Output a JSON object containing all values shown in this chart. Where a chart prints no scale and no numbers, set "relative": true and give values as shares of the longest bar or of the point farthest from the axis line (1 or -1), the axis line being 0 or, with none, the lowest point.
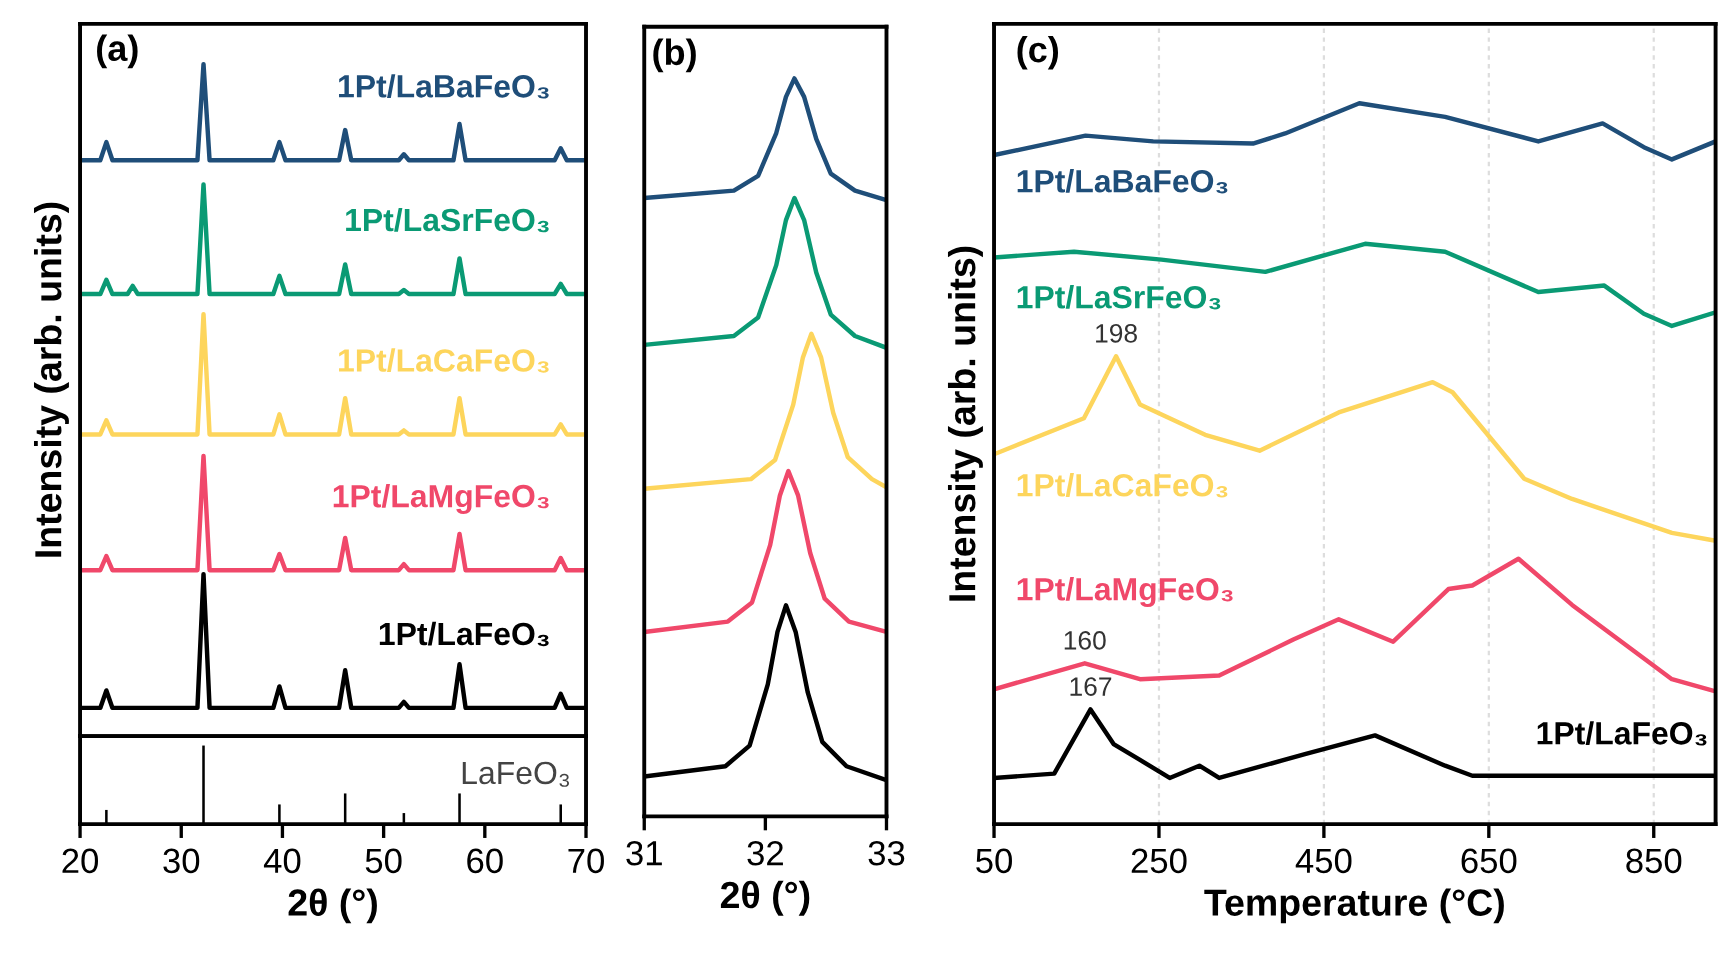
{
  "chart_data": [
    {
      "type": "line",
      "title": "(a)",
      "ylabel": "Intensity (arb. units)",
      "relative": true,
      "xlim": [
        20,
        70
      ],
      "tick_labels": false,
      "x": [
        20,
        22.0,
        22.6,
        23.2,
        24.7,
        25.2,
        25.7,
        31.6,
        32.2,
        32.8,
        39.1,
        39.7,
        40.3,
        45.6,
        46.2,
        46.8,
        51.5,
        52.0,
        52.5,
        56.9,
        57.5,
        58.1,
        66.9,
        67.5,
        68.1,
        70
      ],
      "series": [
        {
          "name": "1Pt/LaBaFeO₃",
          "color": "#1f4e79",
          "values": [
            0.857,
            0.857,
            0.884,
            0.857,
            0.857,
            0.857,
            0.857,
            0.857,
            1.0,
            0.857,
            0.857,
            0.884,
            0.857,
            0.857,
            0.902,
            0.857,
            0.857,
            0.866,
            0.857,
            0.857,
            0.911,
            0.857,
            0.857,
            0.875,
            0.857,
            0.857
          ]
        },
        {
          "name": "1Pt/LaSrFeO₃",
          "color": "#0a9a74",
          "values": [
            0.658,
            0.658,
            0.679,
            0.658,
            0.658,
            0.67,
            0.658,
            0.658,
            0.821,
            0.658,
            0.658,
            0.685,
            0.658,
            0.658,
            0.702,
            0.658,
            0.658,
            0.664,
            0.658,
            0.658,
            0.711,
            0.658,
            0.658,
            0.673,
            0.658,
            0.658
          ]
        },
        {
          "name": "1Pt/LaCaFeO₃",
          "color": "#fdd55c",
          "values": [
            0.449,
            0.449,
            0.47,
            0.449,
            0.449,
            0.449,
            0.449,
            0.449,
            0.628,
            0.449,
            0.449,
            0.479,
            0.449,
            0.449,
            0.503,
            0.449,
            0.449,
            0.455,
            0.449,
            0.449,
            0.503,
            0.449,
            0.449,
            0.464,
            0.449,
            0.449
          ]
        },
        {
          "name": "1Pt/LaMgFeO₃",
          "color": "#f0486a",
          "values": [
            0.247,
            0.247,
            0.268,
            0.247,
            0.247,
            0.247,
            0.247,
            0.247,
            0.417,
            0.247,
            0.247,
            0.271,
            0.247,
            0.247,
            0.295,
            0.247,
            0.247,
            0.256,
            0.247,
            0.247,
            0.301,
            0.247,
            0.247,
            0.265,
            0.247,
            0.247
          ]
        },
        {
          "name": "1Pt/LaFeO₃",
          "color": "#000000",
          "values": [
            0.042,
            0.042,
            0.068,
            0.042,
            0.042,
            0.042,
            0.042,
            0.042,
            0.241,
            0.042,
            0.042,
            0.074,
            0.042,
            0.042,
            0.098,
            0.042,
            0.042,
            0.051,
            0.042,
            0.042,
            0.107,
            0.042,
            0.042,
            0.063,
            0.042,
            0.042
          ]
        }
      ]
    },
    {
      "type": "bar",
      "xlabel": "2θ (°)",
      "relative": true,
      "xlim": [
        20,
        70
      ],
      "xticks": [
        20,
        30,
        40,
        50,
        60,
        70
      ],
      "tick_labels": "x",
      "x": [
        22.6,
        32.2,
        39.7,
        46.2,
        52.0,
        57.5,
        67.5
      ],
      "series": [
        {
          "name": "LaFeO₃",
          "color": "#000000",
          "values": [
            0.18,
            1.0,
            0.25,
            0.39,
            0.14,
            0.39,
            0.25
          ]
        }
      ]
    },
    {
      "type": "line",
      "title": "(b)",
      "xlabel": "2θ (°)",
      "relative": true,
      "xlim": [
        31,
        33
      ],
      "xticks": [
        31,
        32,
        33
      ],
      "tick_labels": "x",
      "series": [
        {
          "color": "#1f4e79",
          "x": [
            31.0,
            31.74,
            31.94,
            32.09,
            32.17,
            32.24,
            32.32,
            32.42,
            32.54,
            32.74,
            33.0
          ],
          "values": [
            0.838,
            0.848,
            0.868,
            0.926,
            0.975,
            1.0,
            0.975,
            0.918,
            0.871,
            0.848,
            0.835
          ]
        },
        {
          "color": "#0a9a74",
          "x": [
            31.0,
            31.74,
            31.94,
            32.09,
            32.17,
            32.24,
            32.32,
            32.42,
            32.54,
            32.74,
            33.0
          ],
          "values": [
            0.639,
            0.651,
            0.676,
            0.747,
            0.808,
            0.838,
            0.808,
            0.737,
            0.68,
            0.651,
            0.635
          ]
        },
        {
          "color": "#fdd55c",
          "x": [
            31.0,
            31.88,
            32.08,
            32.23,
            32.31,
            32.38,
            32.46,
            32.56,
            32.68,
            32.88,
            33.0
          ],
          "values": [
            0.444,
            0.457,
            0.483,
            0.558,
            0.622,
            0.654,
            0.622,
            0.547,
            0.487,
            0.457,
            0.446
          ]
        },
        {
          "color": "#f0486a",
          "x": [
            31.0,
            31.69,
            31.89,
            32.04,
            32.12,
            32.19,
            32.27,
            32.37,
            32.49,
            32.69,
            33.0
          ],
          "values": [
            0.25,
            0.264,
            0.29,
            0.368,
            0.435,
            0.468,
            0.435,
            0.357,
            0.295,
            0.264,
            0.25
          ]
        },
        {
          "color": "#000000",
          "x": [
            31.0,
            31.67,
            31.87,
            32.02,
            32.1,
            32.17,
            32.25,
            32.35,
            32.47,
            32.67,
            33.0
          ],
          "values": [
            0.054,
            0.068,
            0.096,
            0.179,
            0.25,
            0.286,
            0.25,
            0.168,
            0.101,
            0.068,
            0.049
          ]
        }
      ]
    },
    {
      "type": "line",
      "title": "(c)",
      "xlabel": "Temperature (°C)",
      "ylabel": "Intensity (arb. units)",
      "relative": true,
      "xlim": [
        50,
        925
      ],
      "xticks": [
        50,
        250,
        450,
        650,
        850
      ],
      "tick_labels": "x",
      "grid": "x",
      "series": [
        {
          "name": "1Pt/LaBaFeO₃",
          "color": "#1f4e79",
          "x": [
            50,
            161,
            243,
            364,
            403,
            493,
            597,
            710,
            788,
            838,
            872,
            925
          ],
          "values": [
            0.928,
            0.955,
            0.947,
            0.944,
            0.958,
            1.0,
            0.981,
            0.947,
            0.972,
            0.939,
            0.922,
            0.947
          ]
        },
        {
          "name": "1Pt/LaSrFeO₃",
          "color": "#0a9a74",
          "x": [
            50,
            147,
            253,
            379,
            500,
            597,
            710,
            790,
            838,
            872,
            925
          ],
          "values": [
            0.786,
            0.794,
            0.783,
            0.766,
            0.805,
            0.794,
            0.738,
            0.747,
            0.708,
            0.691,
            0.71
          ]
        },
        {
          "name": "1Pt/LaCaFeO₃",
          "color": "#fdd55c",
          "x": [
            50,
            159,
            198,
            227,
            306,
            372,
            468,
            582,
            606,
            693,
            751,
            872,
            925
          ],
          "values": [
            0.513,
            0.563,
            0.649,
            0.582,
            0.54,
            0.518,
            0.571,
            0.613,
            0.599,
            0.479,
            0.451,
            0.404,
            0.393
          ]
        },
        {
          "name": "1Pt/LaMgFeO₃",
          "color": "#f0486a",
          "x": [
            50,
            160,
            227,
            323,
            413,
            468,
            534,
            601,
            630,
            686,
            751,
            872,
            925
          ],
          "values": [
            0.187,
            0.223,
            0.201,
            0.206,
            0.256,
            0.284,
            0.253,
            0.326,
            0.331,
            0.368,
            0.304,
            0.201,
            0.184
          ]
        },
        {
          "name": "1Pt/LaFeO₃",
          "color": "#000000",
          "x": [
            50,
            123,
            167,
            195,
            227,
            263,
            299,
            323,
            427,
            512,
            597,
            630,
            925
          ],
          "values": [
            0.064,
            0.07,
            0.159,
            0.111,
            0.089,
            0.064,
            0.081,
            0.064,
            0.097,
            0.123,
            0.081,
            0.067,
            0.067
          ]
        }
      ],
      "annotations": [
        {
          "text": "198",
          "x": 198,
          "y": 0.649
        },
        {
          "text": "160",
          "x": 160,
          "y": 0.223
        },
        {
          "text": "167",
          "x": 167,
          "y": 0.159
        }
      ]
    }
  ]
}
